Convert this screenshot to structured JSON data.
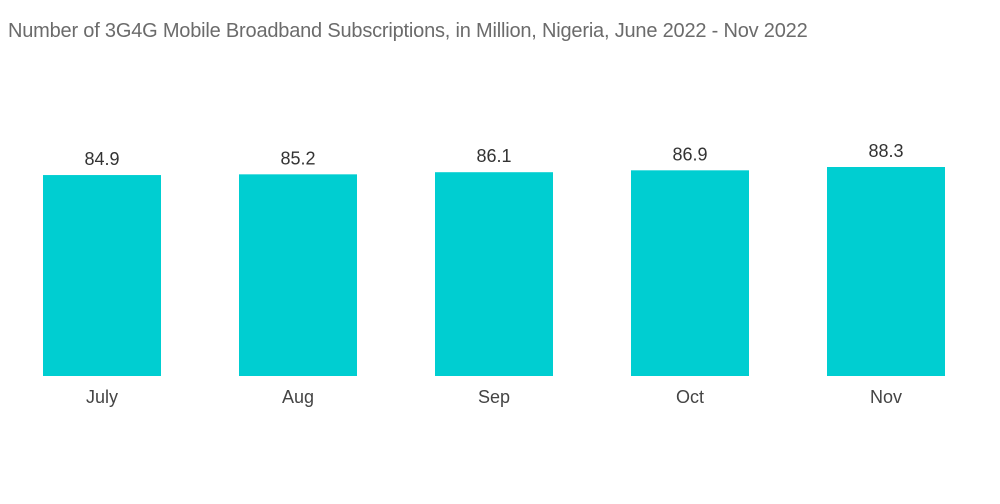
{
  "chart_data": {
    "type": "bar",
    "title": "Number of 3G4G Mobile Broadband Subscriptions, in Million, Nigeria, June 2022 - Nov 2022",
    "categories": [
      "July",
      "Aug",
      "Sep",
      "Oct",
      "Nov"
    ],
    "values": [
      84.9,
      85.2,
      86.1,
      86.9,
      88.3
    ],
    "xlabel": "",
    "ylabel": "",
    "ylim": [
      0,
      88.3
    ],
    "grid": false,
    "legend": "none",
    "bar_color": "#00CED1"
  }
}
